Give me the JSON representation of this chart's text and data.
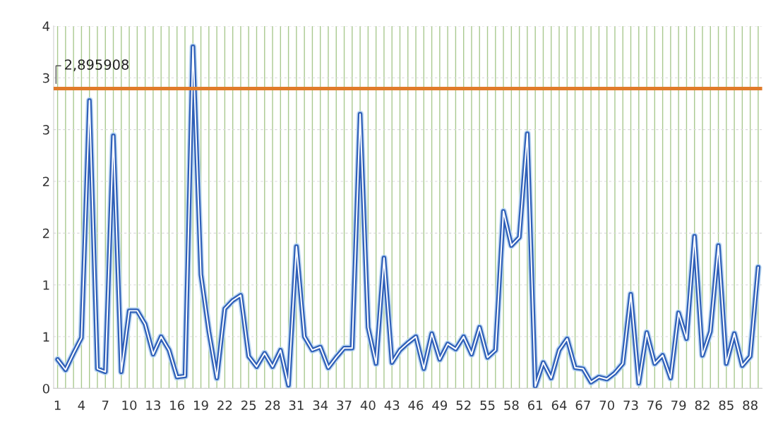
{
  "chart_data": {
    "type": "line",
    "categories": [
      "1",
      null,
      null,
      "4",
      null,
      null,
      "7",
      null,
      null,
      "10",
      null,
      null,
      "13",
      null,
      null,
      "16",
      null,
      null,
      "19",
      null,
      null,
      "22",
      null,
      null,
      "25",
      null,
      null,
      "28",
      null,
      null,
      "31",
      null,
      null,
      "34",
      null,
      null,
      "37",
      null,
      null,
      "40",
      null,
      null,
      "43",
      null,
      null,
      "46",
      null,
      null,
      "49",
      null,
      null,
      "52",
      null,
      null,
      "55",
      null,
      null,
      "58",
      null,
      null,
      "61",
      null,
      null,
      "64",
      null,
      null,
      "67",
      null,
      null,
      "70",
      null,
      null,
      "73",
      null,
      null,
      "76",
      null,
      null,
      "79",
      null,
      null,
      "82",
      null,
      null,
      "85",
      null,
      null,
      "88",
      null
    ],
    "series": [
      {
        "color": "#2f5fb8",
        "values": [
          0.28,
          0.18,
          0.34,
          0.49,
          2.78,
          0.19,
          0.16,
          2.44,
          0.16,
          0.75,
          0.75,
          0.62,
          0.33,
          0.5,
          0.37,
          0.11,
          0.12,
          3.3,
          1.1,
          0.55,
          0.1,
          0.77,
          0.85,
          0.9,
          0.31,
          0.21,
          0.34,
          0.21,
          0.37,
          0.03,
          1.37,
          0.5,
          0.37,
          0.4,
          0.2,
          0.3,
          0.39,
          0.39,
          2.65,
          0.59,
          0.24,
          1.26,
          0.25,
          0.37,
          0.44,
          0.5,
          0.19,
          0.53,
          0.28,
          0.43,
          0.38,
          0.5,
          0.33,
          0.59,
          0.3,
          0.37,
          1.71,
          1.38,
          1.46,
          2.46,
          0.02,
          0.25,
          0.1,
          0.37,
          0.48,
          0.2,
          0.19,
          0.06,
          0.11,
          0.09,
          0.15,
          0.24,
          0.91,
          0.05,
          0.54,
          0.24,
          0.32,
          0.1,
          0.73,
          0.48,
          1.47,
          0.32,
          0.55,
          1.38,
          0.24,
          0.53,
          0.22,
          0.31,
          1.17
        ]
      }
    ],
    "ylim": [
      0,
      3.5
    ],
    "yticks": [
      0,
      {
        "value": 0.5,
        "label": "1"
      },
      1,
      {
        "value": 1.5,
        "label": "2"
      },
      2,
      {
        "value": 2.5,
        "label": "3"
      },
      3,
      {
        "value": 3.5,
        "label": "4"
      }
    ],
    "ref_lines": [
      {
        "axis": "y",
        "value": 2.895908,
        "label": "2,895908",
        "color": "#e07b2a"
      }
    ],
    "grid": true,
    "legend": false
  }
}
